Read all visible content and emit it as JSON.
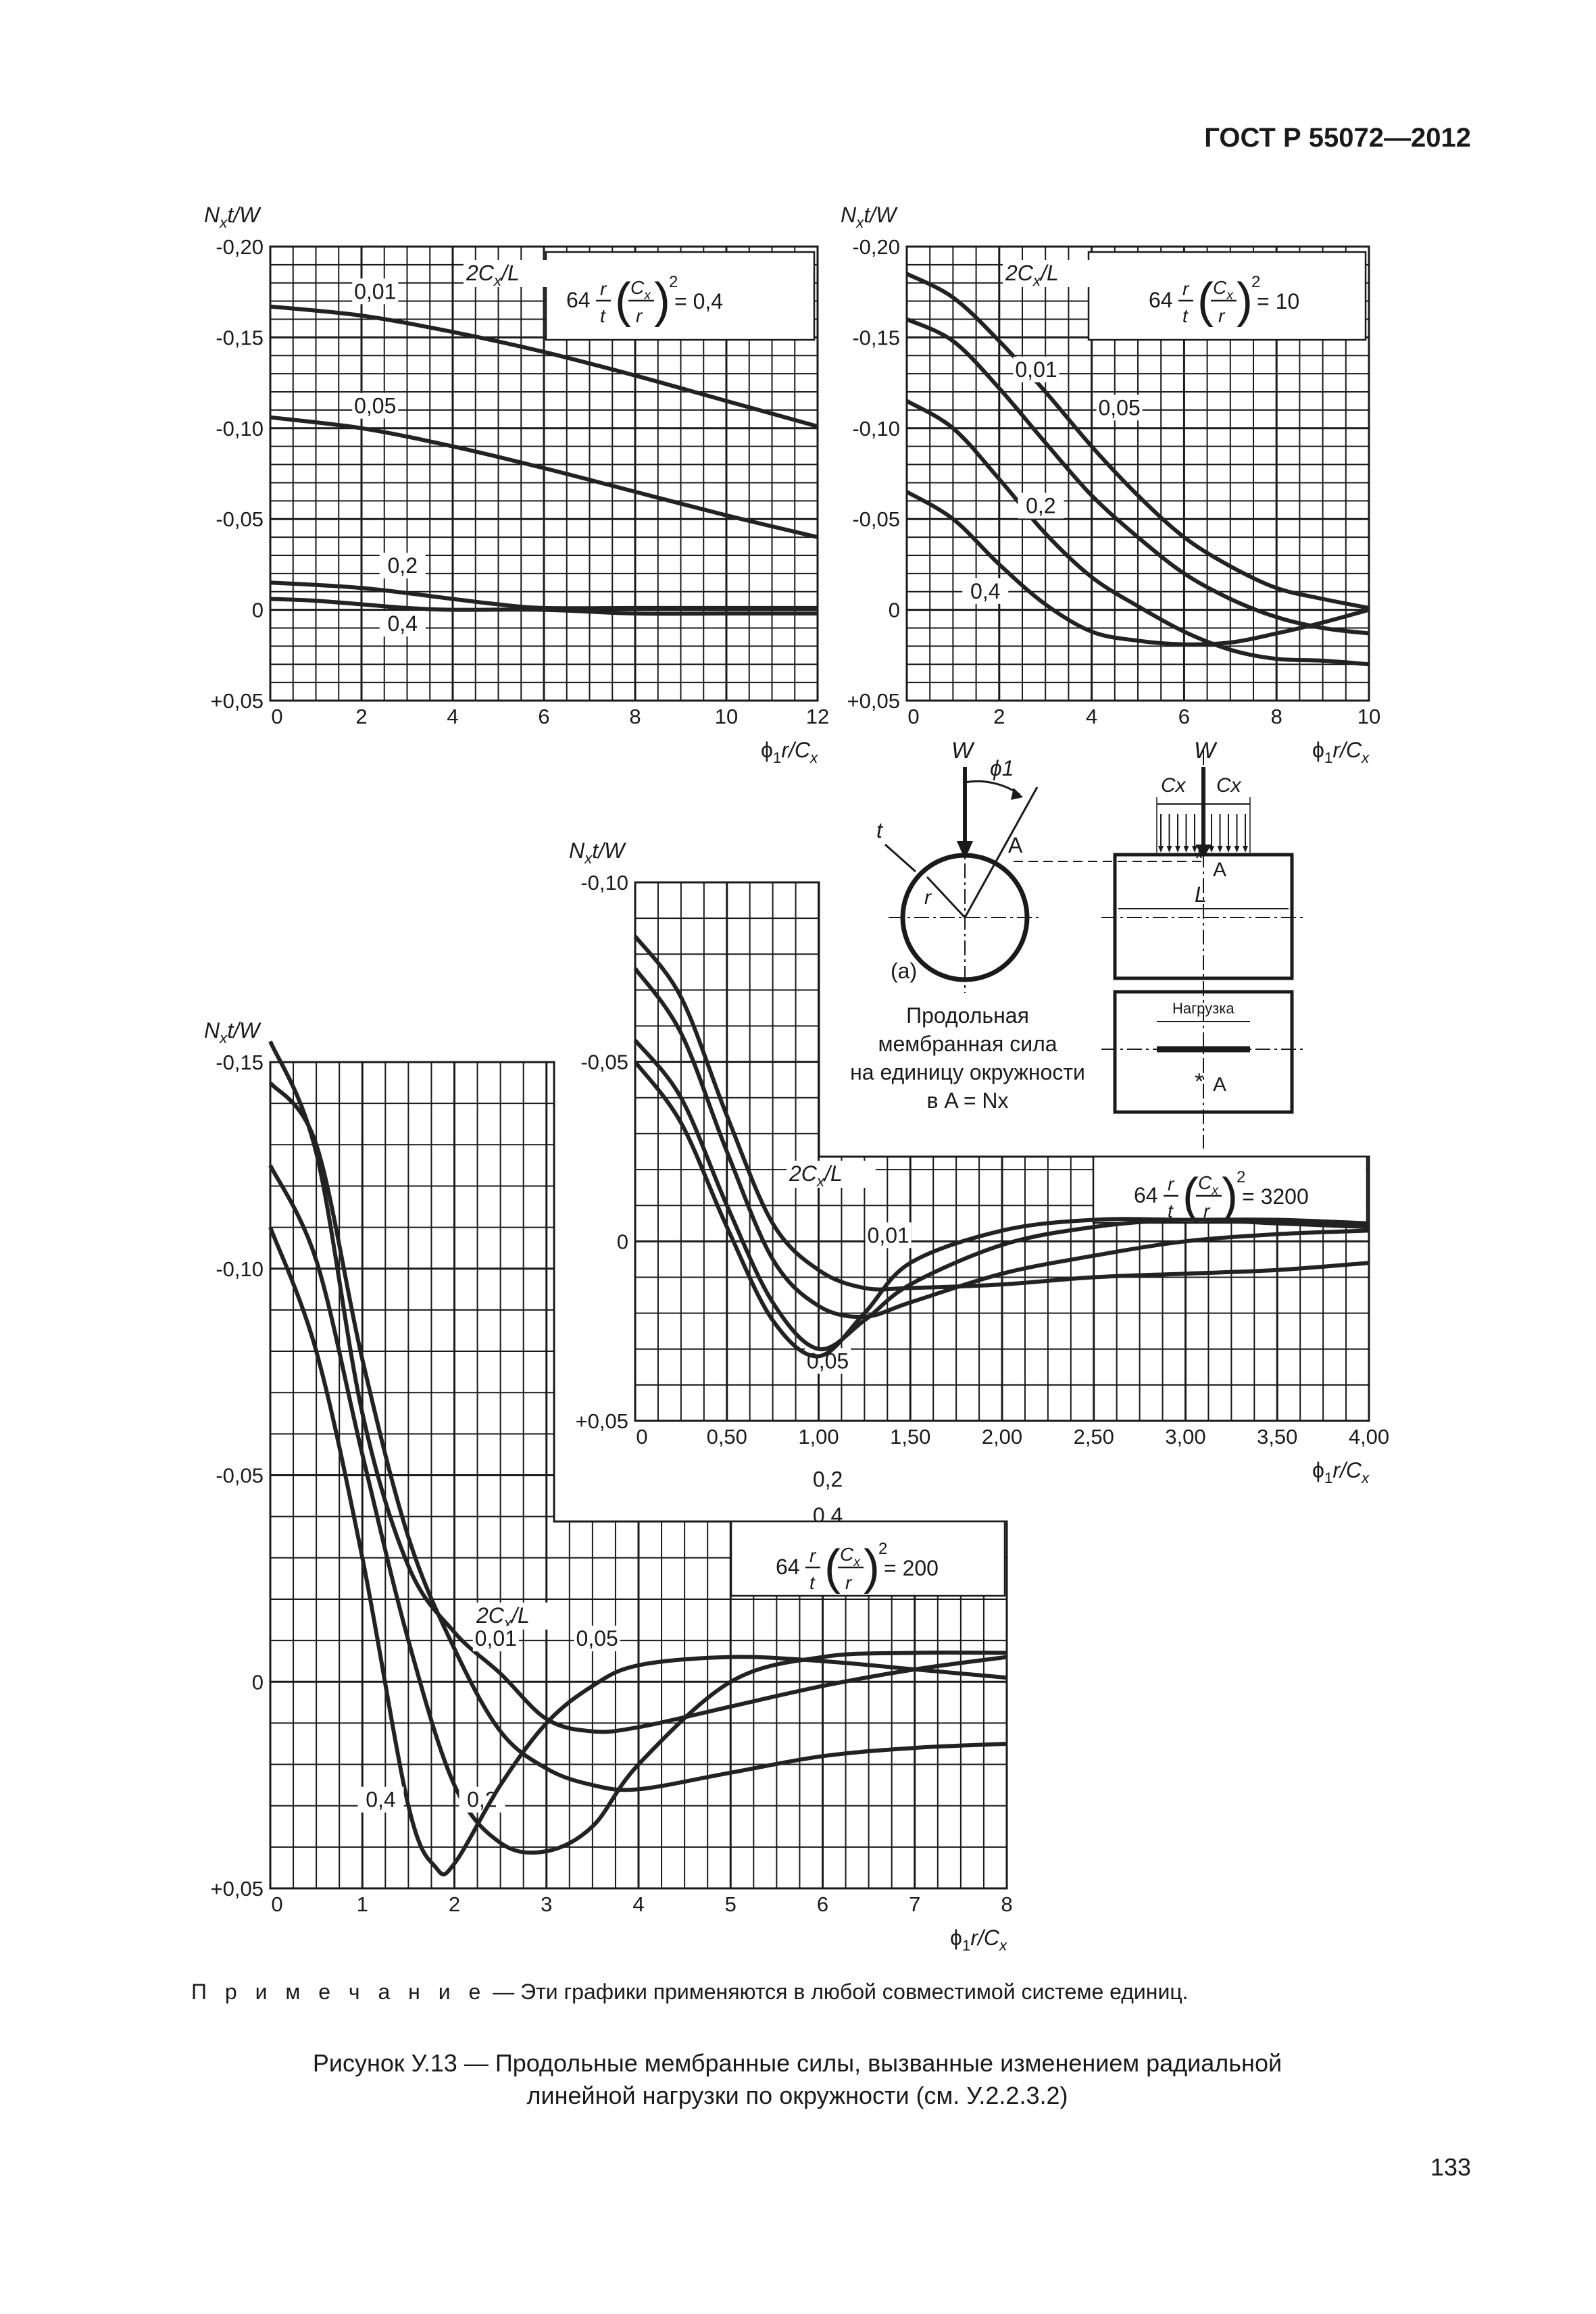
{
  "page": {
    "header": "ГОСТ Р 55072—2012",
    "page_number": "133",
    "note_lead": "П р и м е ч а н и е",
    "note_text": " — Эти графики применяются в любой совместимой системе единиц.",
    "caption_line1": "Рисунок У.13 — Продольные мембранные силы, вызванные изменением радиальной",
    "caption_line2": "линейной нагрузки по окружности (см. У.2.2.3.2)"
  },
  "diagram": {
    "load_label": "W",
    "angle_label": "ϕ1",
    "thickness_label": "t",
    "radius_label": "r",
    "point_label": "A",
    "cx_label": "Cx",
    "length_label": "L",
    "panel_label": "(a)",
    "load_box_label": "Нагрузка",
    "description": [
      "Продольная",
      "мембранная сила",
      "на единицу окружности",
      "в A = Nx"
    ]
  },
  "chart_data": [
    {
      "type": "line",
      "parameter": "64 r/t (Cx/r)² = 0,4",
      "xlabel": "ϕ1r/Cx",
      "ylabel": "Nxt/W",
      "curve_label": "2Cx/L",
      "xlim": [
        0,
        12
      ],
      "ylim": [
        0.05,
        -0.2
      ],
      "xticks": [
        0,
        2,
        4,
        6,
        8,
        10,
        12
      ],
      "yticks": [
        -0.2,
        -0.15,
        -0.1,
        -0.05,
        0,
        0.05
      ],
      "ytick_labels": [
        "-0,20",
        "-0,15",
        "-0,10",
        "-0,05",
        "0",
        "+0,05"
      ],
      "grid": true,
      "series": [
        {
          "name": "0,01",
          "x": [
            0,
            2,
            4,
            6,
            8,
            10,
            12
          ],
          "y": [
            -0.167,
            -0.162,
            -0.153,
            -0.142,
            -0.129,
            -0.115,
            -0.101
          ]
        },
        {
          "name": "0,05",
          "x": [
            0,
            2,
            4,
            6,
            8,
            10,
            12
          ],
          "y": [
            -0.106,
            -0.1,
            -0.09,
            -0.078,
            -0.065,
            -0.052,
            -0.04
          ]
        },
        {
          "name": "0,2",
          "x": [
            0,
            2,
            4,
            5,
            6,
            8,
            10,
            12
          ],
          "y": [
            -0.015,
            -0.012,
            -0.006,
            -0.003,
            -0.001,
            -0.001,
            -0.001,
            -0.001
          ]
        },
        {
          "name": "0,4",
          "x": [
            0,
            1,
            2,
            3,
            4,
            6,
            8,
            10,
            12
          ],
          "y": [
            -0.006,
            -0.005,
            -0.003,
            -0.001,
            0.0,
            0.0,
            0.002,
            0.002,
            0.002
          ]
        }
      ]
    },
    {
      "type": "line",
      "parameter": "64 r/t (Cx/r)² = 10",
      "xlabel": "ϕ1r/Cx",
      "ylabel": "Nxt/W",
      "curve_label": "2Cx/L",
      "xlim": [
        0,
        10
      ],
      "ylim": [
        0.05,
        -0.2
      ],
      "xticks": [
        0,
        2,
        4,
        6,
        8,
        10
      ],
      "yticks": [
        -0.2,
        -0.15,
        -0.1,
        -0.05,
        0,
        0.05
      ],
      "ytick_labels": [
        "-0,20",
        "-0,15",
        "-0,10",
        "-0,05",
        "0",
        "+0,05"
      ],
      "grid": true,
      "series": [
        {
          "name": "0,01",
          "x": [
            0,
            1,
            2,
            3,
            4,
            5,
            6,
            7,
            8,
            9,
            10
          ],
          "y": [
            -0.185,
            -0.172,
            -0.148,
            -0.12,
            -0.09,
            -0.063,
            -0.04,
            -0.024,
            -0.012,
            -0.006,
            -0.001
          ]
        },
        {
          "name": "0,05",
          "x": [
            0,
            1,
            2,
            3,
            4,
            5,
            6,
            7,
            8,
            9,
            10
          ],
          "y": [
            -0.16,
            -0.148,
            -0.122,
            -0.092,
            -0.063,
            -0.04,
            -0.02,
            -0.006,
            0.004,
            0.01,
            0.013
          ]
        },
        {
          "name": "0,2",
          "x": [
            0,
            1,
            2,
            3,
            4,
            5,
            6,
            7,
            8,
            9,
            10
          ],
          "y": [
            -0.115,
            -0.1,
            -0.072,
            -0.042,
            -0.018,
            -0.002,
            0.012,
            0.022,
            0.027,
            0.028,
            0.03
          ]
        },
        {
          "name": "0,4",
          "x": [
            0,
            1,
            2,
            3,
            4,
            5,
            6,
            7,
            8,
            9,
            10
          ],
          "y": [
            -0.065,
            -0.05,
            -0.025,
            -0.003,
            0.012,
            0.017,
            0.019,
            0.018,
            0.013,
            0.007,
            0.0
          ]
        }
      ]
    },
    {
      "type": "line",
      "parameter": "64 r/t (Cx/r)² = 3200",
      "xlabel": "ϕ1r/Cx",
      "ylabel": "Nxt/W",
      "curve_label": "2Cx/L",
      "xlim": [
        0,
        4
      ],
      "ylim": [
        0.05,
        -0.1
      ],
      "xticks": [
        0,
        0.5,
        1.0,
        1.5,
        2.0,
        2.5,
        3.0,
        3.5,
        4.0
      ],
      "xtick_labels": [
        "0",
        "0,50",
        "1,00",
        "1,50",
        "2,00",
        "2,50",
        "3,00",
        "3,50",
        "4,00"
      ],
      "yticks": [
        -0.1,
        -0.05,
        0,
        0.05
      ],
      "ytick_labels": [
        "-0,10",
        "-0,05",
        "0",
        "+0,05"
      ],
      "grid": true,
      "series": [
        {
          "name": "0,01",
          "x": [
            0,
            0.25,
            0.5,
            0.75,
            1.0,
            1.25,
            1.5,
            2.0,
            2.5,
            3.0,
            3.5,
            4.0
          ],
          "y": [
            -0.085,
            -0.068,
            -0.035,
            -0.005,
            0.008,
            0.013,
            0.013,
            0.012,
            0.01,
            0.009,
            0.008,
            0.006
          ]
        },
        {
          "name": "0,05",
          "x": [
            0,
            0.25,
            0.5,
            0.75,
            1.0,
            1.25,
            1.5,
            2.0,
            2.5,
            3.0,
            3.5,
            4.0
          ],
          "y": [
            -0.076,
            -0.058,
            -0.025,
            0.005,
            0.018,
            0.021,
            0.017,
            0.009,
            0.004,
            0.0,
            -0.002,
            -0.003
          ]
        },
        {
          "name": "0,2",
          "x": [
            0,
            0.25,
            0.5,
            0.75,
            1.0,
            1.25,
            1.5,
            2.0,
            2.5,
            3.0,
            3.5,
            4.0
          ],
          "y": [
            -0.056,
            -0.04,
            -0.01,
            0.017,
            0.03,
            0.022,
            0.012,
            0.001,
            -0.004,
            -0.006,
            -0.005,
            -0.004
          ]
        },
        {
          "name": "0,4",
          "x": [
            0,
            0.25,
            0.5,
            0.75,
            1.0,
            1.25,
            1.5,
            2.0,
            2.5,
            3.0,
            3.5,
            4.0
          ],
          "y": [
            -0.05,
            -0.033,
            -0.004,
            0.022,
            0.032,
            0.02,
            0.006,
            -0.003,
            -0.006,
            -0.006,
            -0.006,
            -0.005
          ]
        }
      ]
    },
    {
      "type": "line",
      "parameter": "64 r/t (Cx/r)² = 200",
      "xlabel": "ϕ1r/Cx",
      "ylabel": "Nxt/W",
      "curve_label": "2Cx/L",
      "xlim": [
        0,
        8
      ],
      "ylim": [
        0.05,
        -0.15
      ],
      "xticks": [
        0,
        1,
        2,
        3,
        4,
        5,
        6,
        7,
        8
      ],
      "yticks": [
        -0.15,
        -0.1,
        -0.05,
        0,
        0.05
      ],
      "ytick_labels": [
        "-0,15",
        "-0,10",
        "-0,05",
        "0",
        "+0,05"
      ],
      "grid": true,
      "series": [
        {
          "name": "0,01",
          "x": [
            0,
            0.5,
            1.0,
            1.5,
            2.0,
            2.5,
            3.0,
            3.5,
            4.0,
            5.0,
            6.0,
            7.0,
            8.0
          ],
          "y": [
            -0.155,
            -0.128,
            -0.065,
            -0.028,
            -0.012,
            -0.002,
            0.009,
            0.012,
            0.011,
            0.006,
            0.001,
            -0.003,
            -0.006
          ]
        },
        {
          "name": "0,05",
          "x": [
            0,
            0.5,
            1.0,
            1.5,
            2.0,
            2.5,
            3.0,
            3.5,
            4.0,
            5.0,
            6.0,
            7.0,
            8.0
          ],
          "y": [
            -0.145,
            -0.13,
            -0.078,
            -0.035,
            -0.008,
            0.012,
            0.021,
            0.025,
            0.026,
            0.022,
            0.018,
            0.016,
            0.015
          ]
        },
        {
          "name": "0,2",
          "x": [
            0,
            0.5,
            1.0,
            1.5,
            2.0,
            2.5,
            3.0,
            3.5,
            4.0,
            5.0,
            6.0,
            7.0,
            8.0
          ],
          "y": [
            -0.125,
            -0.102,
            -0.055,
            -0.01,
            0.025,
            0.039,
            0.041,
            0.035,
            0.02,
            0.0,
            -0.006,
            -0.007,
            -0.007
          ]
        },
        {
          "name": "0,4",
          "x": [
            0,
            0.5,
            1.0,
            1.5,
            1.8,
            2.0,
            2.5,
            3.0,
            3.5,
            4.0,
            5.0,
            6.0,
            7.0,
            8.0
          ],
          "y": [
            -0.11,
            -0.08,
            -0.03,
            0.03,
            0.045,
            0.044,
            0.025,
            0.01,
            0.001,
            -0.004,
            -0.006,
            -0.005,
            -0.003,
            -0.001
          ]
        }
      ]
    }
  ]
}
